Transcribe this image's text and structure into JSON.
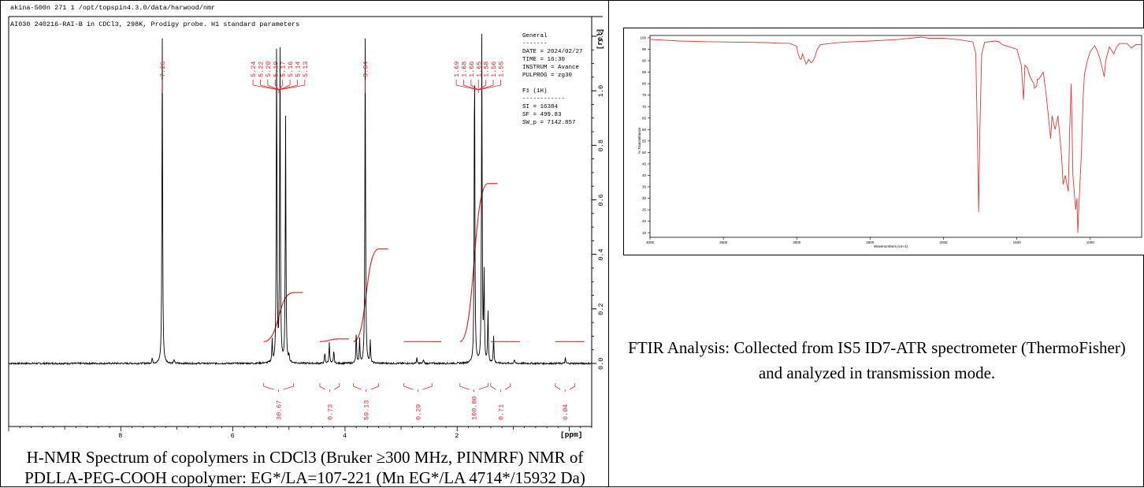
{
  "nmr": {
    "header_line1": "akina-500n  271  1  /opt/topspin4.3.0/data/harwood/nmr",
    "header_line2": "AI030 240216-RAI-B in CDCl3, 298K, Prodigy probe.  H1 standard parameters",
    "yaxis_unit": "[rel]",
    "xaxis_unit": "[ppm]",
    "params": [
      "General",
      "-------",
      "DATE = 2024/02/27",
      "TIME = 16:30",
      "INSTRUM = Avance",
      "PULPROG = zg30",
      "",
      "F1 (1H)",
      "------------",
      "SI =  16384",
      "SF =  499.83",
      "SW_p =  7142.857"
    ],
    "caption": "H-NMR Spectrum of copolymers in CDCl3 (Bruker ≥300 MHz, PINMRF) NMR of PDLLA-PEG-COOH copolymer: EG*/LA=107-221 (Mn EG*/LA 4714*/15932 Da)"
  },
  "ftir": {
    "ylabel": "% Transmittance",
    "xlabel": "Wavenumbers (cm-1)",
    "caption": "FTIR Analysis: Collected from IS5 ID7-ATR spectrometer (ThermoFisher) and analyzed in transmission mode."
  },
  "chart_data": [
    {
      "type": "line",
      "x_axis": {
        "reversed": true,
        "range": [
          10,
          -0.4
        ],
        "ticks": [
          8,
          6,
          4,
          2
        ]
      },
      "y_axis": {
        "range": [
          -0.2,
          1.25
        ],
        "ticks": [
          0.0,
          0.2,
          0.4,
          0.6,
          0.8,
          1.0,
          1.2
        ]
      },
      "peaks": [
        {
          "ppm": 7.44,
          "height": 0.02
        },
        {
          "ppm": 7.26,
          "height": 1.2
        },
        {
          "ppm": 7.05,
          "height": 0.015
        },
        {
          "ppm": 5.3,
          "height": 0.08
        },
        {
          "ppm": 5.22,
          "height": 1.2
        },
        {
          "ppm": 5.16,
          "height": 1.2
        },
        {
          "ppm": 5.06,
          "height": 0.9
        },
        {
          "ppm": 5.0,
          "height": 0.03
        },
        {
          "ppm": 4.36,
          "height": 0.04
        },
        {
          "ppm": 4.28,
          "height": 0.08
        },
        {
          "ppm": 4.2,
          "height": 0.05
        },
        {
          "ppm": 3.8,
          "height": 0.11
        },
        {
          "ppm": 3.74,
          "height": 0.09
        },
        {
          "ppm": 3.64,
          "height": 1.2
        },
        {
          "ppm": 3.55,
          "height": 0.08
        },
        {
          "ppm": 2.72,
          "height": 0.02
        },
        {
          "ppm": 2.6,
          "height": 0.015
        },
        {
          "ppm": 1.69,
          "height": 1.2
        },
        {
          "ppm": 1.56,
          "height": 1.2
        },
        {
          "ppm": 1.52,
          "height": 0.33
        },
        {
          "ppm": 1.45,
          "height": 0.2
        },
        {
          "ppm": 1.35,
          "height": 0.1
        },
        {
          "ppm": 0.98,
          "height": 0.015
        },
        {
          "ppm": 0.07,
          "height": 0.02
        }
      ],
      "peak_labels": [
        {
          "ppm": 7.26,
          "labels": [
            "7.26"
          ]
        },
        {
          "ppm": 5.18,
          "labels": [
            "5.24",
            "5.22",
            "5.20",
            "5.19",
            "5.17",
            "5.16",
            "5.14",
            "5.13"
          ]
        },
        {
          "ppm": 3.64,
          "labels": [
            "3.64"
          ]
        },
        {
          "ppm": 1.62,
          "labels": [
            "1.69",
            "1.68",
            "1.66",
            "1.65",
            "1.58",
            "1.56",
            "1.55"
          ]
        }
      ],
      "integrals": [
        {
          "from": 5.45,
          "to": 4.92,
          "value": "30.67",
          "top": 0.26
        },
        {
          "from": 4.45,
          "to": 4.1,
          "value": "0.73",
          "top": 0.09
        },
        {
          "from": 3.85,
          "to": 3.4,
          "value": "59.13",
          "top": 0.42
        },
        {
          "from": 2.95,
          "to": 2.45,
          "value": "0.29",
          "top": 0.08
        },
        {
          "from": 1.95,
          "to": 1.45,
          "value": "100.00",
          "top": 0.66
        },
        {
          "from": 1.4,
          "to": 1.05,
          "value": "0.71",
          "top": 0.08
        },
        {
          "from": 0.25,
          "to": -0.1,
          "value": "0.04",
          "top": 0.08
        }
      ]
    },
    {
      "type": "line",
      "x_axis": {
        "reversed": true,
        "range": [
          4000,
          650
        ],
        "ticks": [
          4000,
          3500,
          3000,
          2500,
          2000,
          1500,
          1000
        ]
      },
      "y_axis": {
        "range": [
          13,
          101
        ],
        "ticks": [
          15,
          20,
          25,
          30,
          35,
          40,
          45,
          50,
          55,
          60,
          65,
          70,
          75,
          80,
          85,
          90,
          95,
          100
        ]
      },
      "points": [
        [
          4000,
          99.3
        ],
        [
          3800,
          98.6
        ],
        [
          3600,
          98.3
        ],
        [
          3200,
          97.9
        ],
        [
          3100,
          97.6
        ],
        [
          3050,
          97.6
        ],
        [
          3000,
          96.3
        ],
        [
          2995,
          94.0
        ],
        [
          2980,
          91.0
        ],
        [
          2970,
          90.5
        ],
        [
          2960,
          93.0
        ],
        [
          2945,
          90.0
        ],
        [
          2935,
          88.5
        ],
        [
          2920,
          90.5
        ],
        [
          2900,
          89.0
        ],
        [
          2880,
          91.0
        ],
        [
          2860,
          95.0
        ],
        [
          2840,
          97.0
        ],
        [
          2700,
          98.0
        ],
        [
          2500,
          98.6
        ],
        [
          2300,
          99.3
        ],
        [
          2150,
          100.3
        ],
        [
          2100,
          99.8
        ],
        [
          2000,
          99.8
        ],
        [
          1900,
          99.2
        ],
        [
          1800,
          98.2
        ],
        [
          1780,
          93.0
        ],
        [
          1770,
          60.0
        ],
        [
          1760,
          24.0
        ],
        [
          1752,
          60.0
        ],
        [
          1740,
          93.0
        ],
        [
          1720,
          98.0
        ],
        [
          1650,
          98.6
        ],
        [
          1620,
          98.2
        ],
        [
          1600,
          97.0
        ],
        [
          1500,
          95.0
        ],
        [
          1470,
          88.0
        ],
        [
          1455,
          73.0
        ],
        [
          1445,
          88.0
        ],
        [
          1430,
          87.0
        ],
        [
          1410,
          83.0
        ],
        [
          1385,
          80.0
        ],
        [
          1380,
          78.0
        ],
        [
          1365,
          79.0
        ],
        [
          1360,
          82.0
        ],
        [
          1350,
          82.0
        ],
        [
          1320,
          85.0
        ],
        [
          1300,
          75.0
        ],
        [
          1270,
          56.0
        ],
        [
          1260,
          66.0
        ],
        [
          1240,
          60.0
        ],
        [
          1220,
          66.0
        ],
        [
          1195,
          48.0
        ],
        [
          1185,
          36.0
        ],
        [
          1170,
          40.0
        ],
        [
          1150,
          33.0
        ],
        [
          1140,
          60.0
        ],
        [
          1130,
          80.0
        ],
        [
          1118,
          40.0
        ],
        [
          1100,
          25.0
        ],
        [
          1090,
          30.0
        ],
        [
          1085,
          15.0
        ],
        [
          1075,
          30.0
        ],
        [
          1060,
          50.0
        ],
        [
          1050,
          72.0
        ],
        [
          1040,
          84.0
        ],
        [
          1020,
          90.0
        ],
        [
          1000,
          94.0
        ],
        [
          970,
          96.5
        ],
        [
          950,
          94.0
        ],
        [
          930,
          90.0
        ],
        [
          905,
          83.0
        ],
        [
          895,
          90.0
        ],
        [
          870,
          96.0
        ],
        [
          840,
          93.0
        ],
        [
          820,
          96.0
        ],
        [
          800,
          97.5
        ],
        [
          750,
          97.5
        ],
        [
          720,
          95.5
        ],
        [
          690,
          97.0
        ],
        [
          650,
          97.0
        ]
      ]
    }
  ]
}
